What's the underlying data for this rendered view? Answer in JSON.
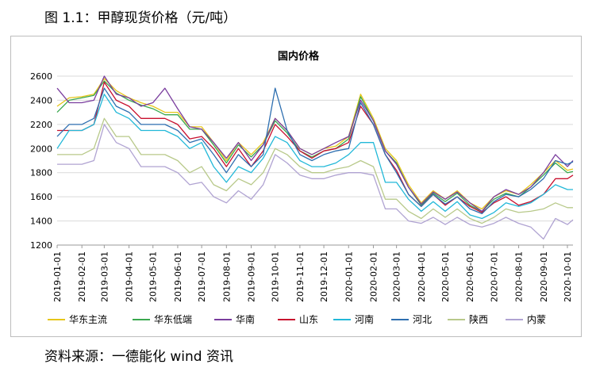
{
  "figure_title": "图 1.1：甲醇现货价格（元/吨）",
  "source_note": "资料来源：一德能化  wind 资讯",
  "chart_data": {
    "type": "line",
    "title": "国内价格",
    "xlabel": "",
    "ylabel": "",
    "ylim": [
      1200,
      2600
    ],
    "yticks": [
      1200,
      1400,
      1600,
      1800,
      2000,
      2200,
      2400,
      2600
    ],
    "grid": "horizontal",
    "legend_position": "bottom",
    "x_tick_labels": [
      "2019-01-01",
      "2019-02-01",
      "2019-03-01",
      "2019-04-01",
      "2019-05-01",
      "2019-06-01",
      "2019-07-01",
      "2019-08-01",
      "2019-09-01",
      "2019-10-01",
      "2019-11-01",
      "2019-12-01",
      "2020-01-01",
      "2020-02-01",
      "2020-03-01",
      "2020-04-01",
      "2020-05-01",
      "2020-06-01",
      "2020-07-01",
      "2020-08-01",
      "2020-09-01",
      "2020-10-01"
    ],
    "x": [
      "2019-01-01",
      "2019-01-16",
      "2019-02-01",
      "2019-02-16",
      "2019-03-01",
      "2019-03-16",
      "2019-04-01",
      "2019-04-16",
      "2019-05-01",
      "2019-05-16",
      "2019-06-01",
      "2019-06-16",
      "2019-07-01",
      "2019-07-16",
      "2019-08-01",
      "2019-08-16",
      "2019-09-01",
      "2019-09-16",
      "2019-10-01",
      "2019-10-16",
      "2019-11-01",
      "2019-11-16",
      "2019-12-01",
      "2019-12-16",
      "2020-01-01",
      "2020-01-16",
      "2020-02-01",
      "2020-02-16",
      "2020-03-01",
      "2020-03-16",
      "2020-04-01",
      "2020-04-16",
      "2020-05-01",
      "2020-05-16",
      "2020-06-01",
      "2020-06-16",
      "2020-07-01",
      "2020-07-16",
      "2020-08-01",
      "2020-08-16",
      "2020-09-01",
      "2020-09-16",
      "2020-10-01",
      "2020-10-08"
    ],
    "series": [
      {
        "name": "华东主流",
        "color": "#e6c619",
        "values": [
          2350,
          2420,
          2430,
          2450,
          2580,
          2480,
          2420,
          2380,
          2350,
          2300,
          2300,
          2180,
          2180,
          2050,
          1900,
          2050,
          1950,
          2050,
          2250,
          2150,
          2000,
          1950,
          2000,
          2020,
          2100,
          2450,
          2250,
          2000,
          1900,
          1700,
          1550,
          1650,
          1580,
          1650,
          1550,
          1500,
          1600,
          1650,
          1620,
          1700,
          1800,
          1900,
          1820,
          1830
        ]
      },
      {
        "name": "华东低端",
        "color": "#3aa84f",
        "values": [
          2300,
          2400,
          2420,
          2440,
          2560,
          2460,
          2400,
          2360,
          2330,
          2280,
          2280,
          2160,
          2160,
          2030,
          1880,
          2030,
          1930,
          2030,
          2230,
          2130,
          1980,
          1930,
          1980,
          2000,
          2080,
          2430,
          2230,
          1980,
          1880,
          1680,
          1530,
          1630,
          1560,
          1630,
          1530,
          1480,
          1580,
          1630,
          1600,
          1680,
          1780,
          1880,
          1800,
          1810
        ]
      },
      {
        "name": "华南",
        "color": "#7a3d9e",
        "values": [
          2500,
          2380,
          2380,
          2400,
          2600,
          2450,
          2420,
          2350,
          2380,
          2500,
          2330,
          2180,
          2160,
          2050,
          1920,
          2050,
          1900,
          2030,
          2250,
          2150,
          2000,
          1950,
          2000,
          2050,
          2100,
          2400,
          2230,
          1980,
          1870,
          1680,
          1540,
          1640,
          1580,
          1640,
          1550,
          1480,
          1600,
          1660,
          1620,
          1680,
          1800,
          1950,
          1850,
          1900
        ]
      },
      {
        "name": "山东",
        "color": "#c8102e",
        "values": [
          2150,
          2150,
          2150,
          2200,
          2550,
          2400,
          2350,
          2250,
          2250,
          2250,
          2200,
          2080,
          2100,
          2000,
          1850,
          2000,
          1850,
          1980,
          2200,
          2100,
          1980,
          1920,
          1980,
          2000,
          2050,
          2350,
          2200,
          1950,
          1820,
          1620,
          1520,
          1620,
          1530,
          1600,
          1520,
          1470,
          1550,
          1600,
          1530,
          1560,
          1620,
          1750,
          1750,
          1780
        ]
      },
      {
        "name": "河南",
        "color": "#22b8d8",
        "values": [
          2000,
          2150,
          2150,
          2200,
          2450,
          2300,
          2250,
          2150,
          2150,
          2150,
          2100,
          2000,
          2050,
          1850,
          1720,
          1850,
          1800,
          1920,
          2100,
          2050,
          1900,
          1850,
          1850,
          1880,
          1950,
          2050,
          2050,
          1720,
          1720,
          1580,
          1480,
          1560,
          1480,
          1560,
          1450,
          1420,
          1470,
          1550,
          1520,
          1550,
          1620,
          1700,
          1660,
          1660
        ]
      },
      {
        "name": "河北",
        "color": "#2e6fb0",
        "values": [
          2100,
          2200,
          2200,
          2250,
          2500,
          2350,
          2300,
          2200,
          2200,
          2200,
          2150,
          2050,
          2080,
          1950,
          1800,
          1950,
          1850,
          1950,
          2500,
          2150,
          1950,
          1900,
          1950,
          1980,
          2000,
          2380,
          2200,
          1950,
          1800,
          1620,
          1520,
          1620,
          1540,
          1600,
          1500,
          1460,
          1560,
          1620,
          1600,
          1660,
          1750,
          1900,
          1870,
          1890
        ]
      },
      {
        "name": "陕西",
        "color": "#b8c98a",
        "values": [
          1950,
          1950,
          1950,
          2000,
          2250,
          2100,
          2100,
          1950,
          1950,
          1950,
          1900,
          1800,
          1850,
          1700,
          1650,
          1750,
          1700,
          1800,
          2000,
          1950,
          1850,
          1800,
          1800,
          1830,
          1850,
          1900,
          1850,
          1580,
          1580,
          1480,
          1420,
          1500,
          1430,
          1500,
          1420,
          1380,
          1430,
          1500,
          1470,
          1480,
          1500,
          1550,
          1510,
          1510
        ]
      },
      {
        "name": "内蒙",
        "color": "#b0a3d2",
        "values": [
          1870,
          1870,
          1870,
          1900,
          2200,
          2050,
          2000,
          1850,
          1850,
          1850,
          1800,
          1700,
          1720,
          1600,
          1550,
          1650,
          1580,
          1700,
          1950,
          1880,
          1780,
          1750,
          1750,
          1780,
          1800,
          1800,
          1780,
          1500,
          1500,
          1400,
          1380,
          1430,
          1370,
          1430,
          1370,
          1350,
          1380,
          1430,
          1380,
          1350,
          1250,
          1420,
          1370,
          1410
        ]
      }
    ]
  }
}
